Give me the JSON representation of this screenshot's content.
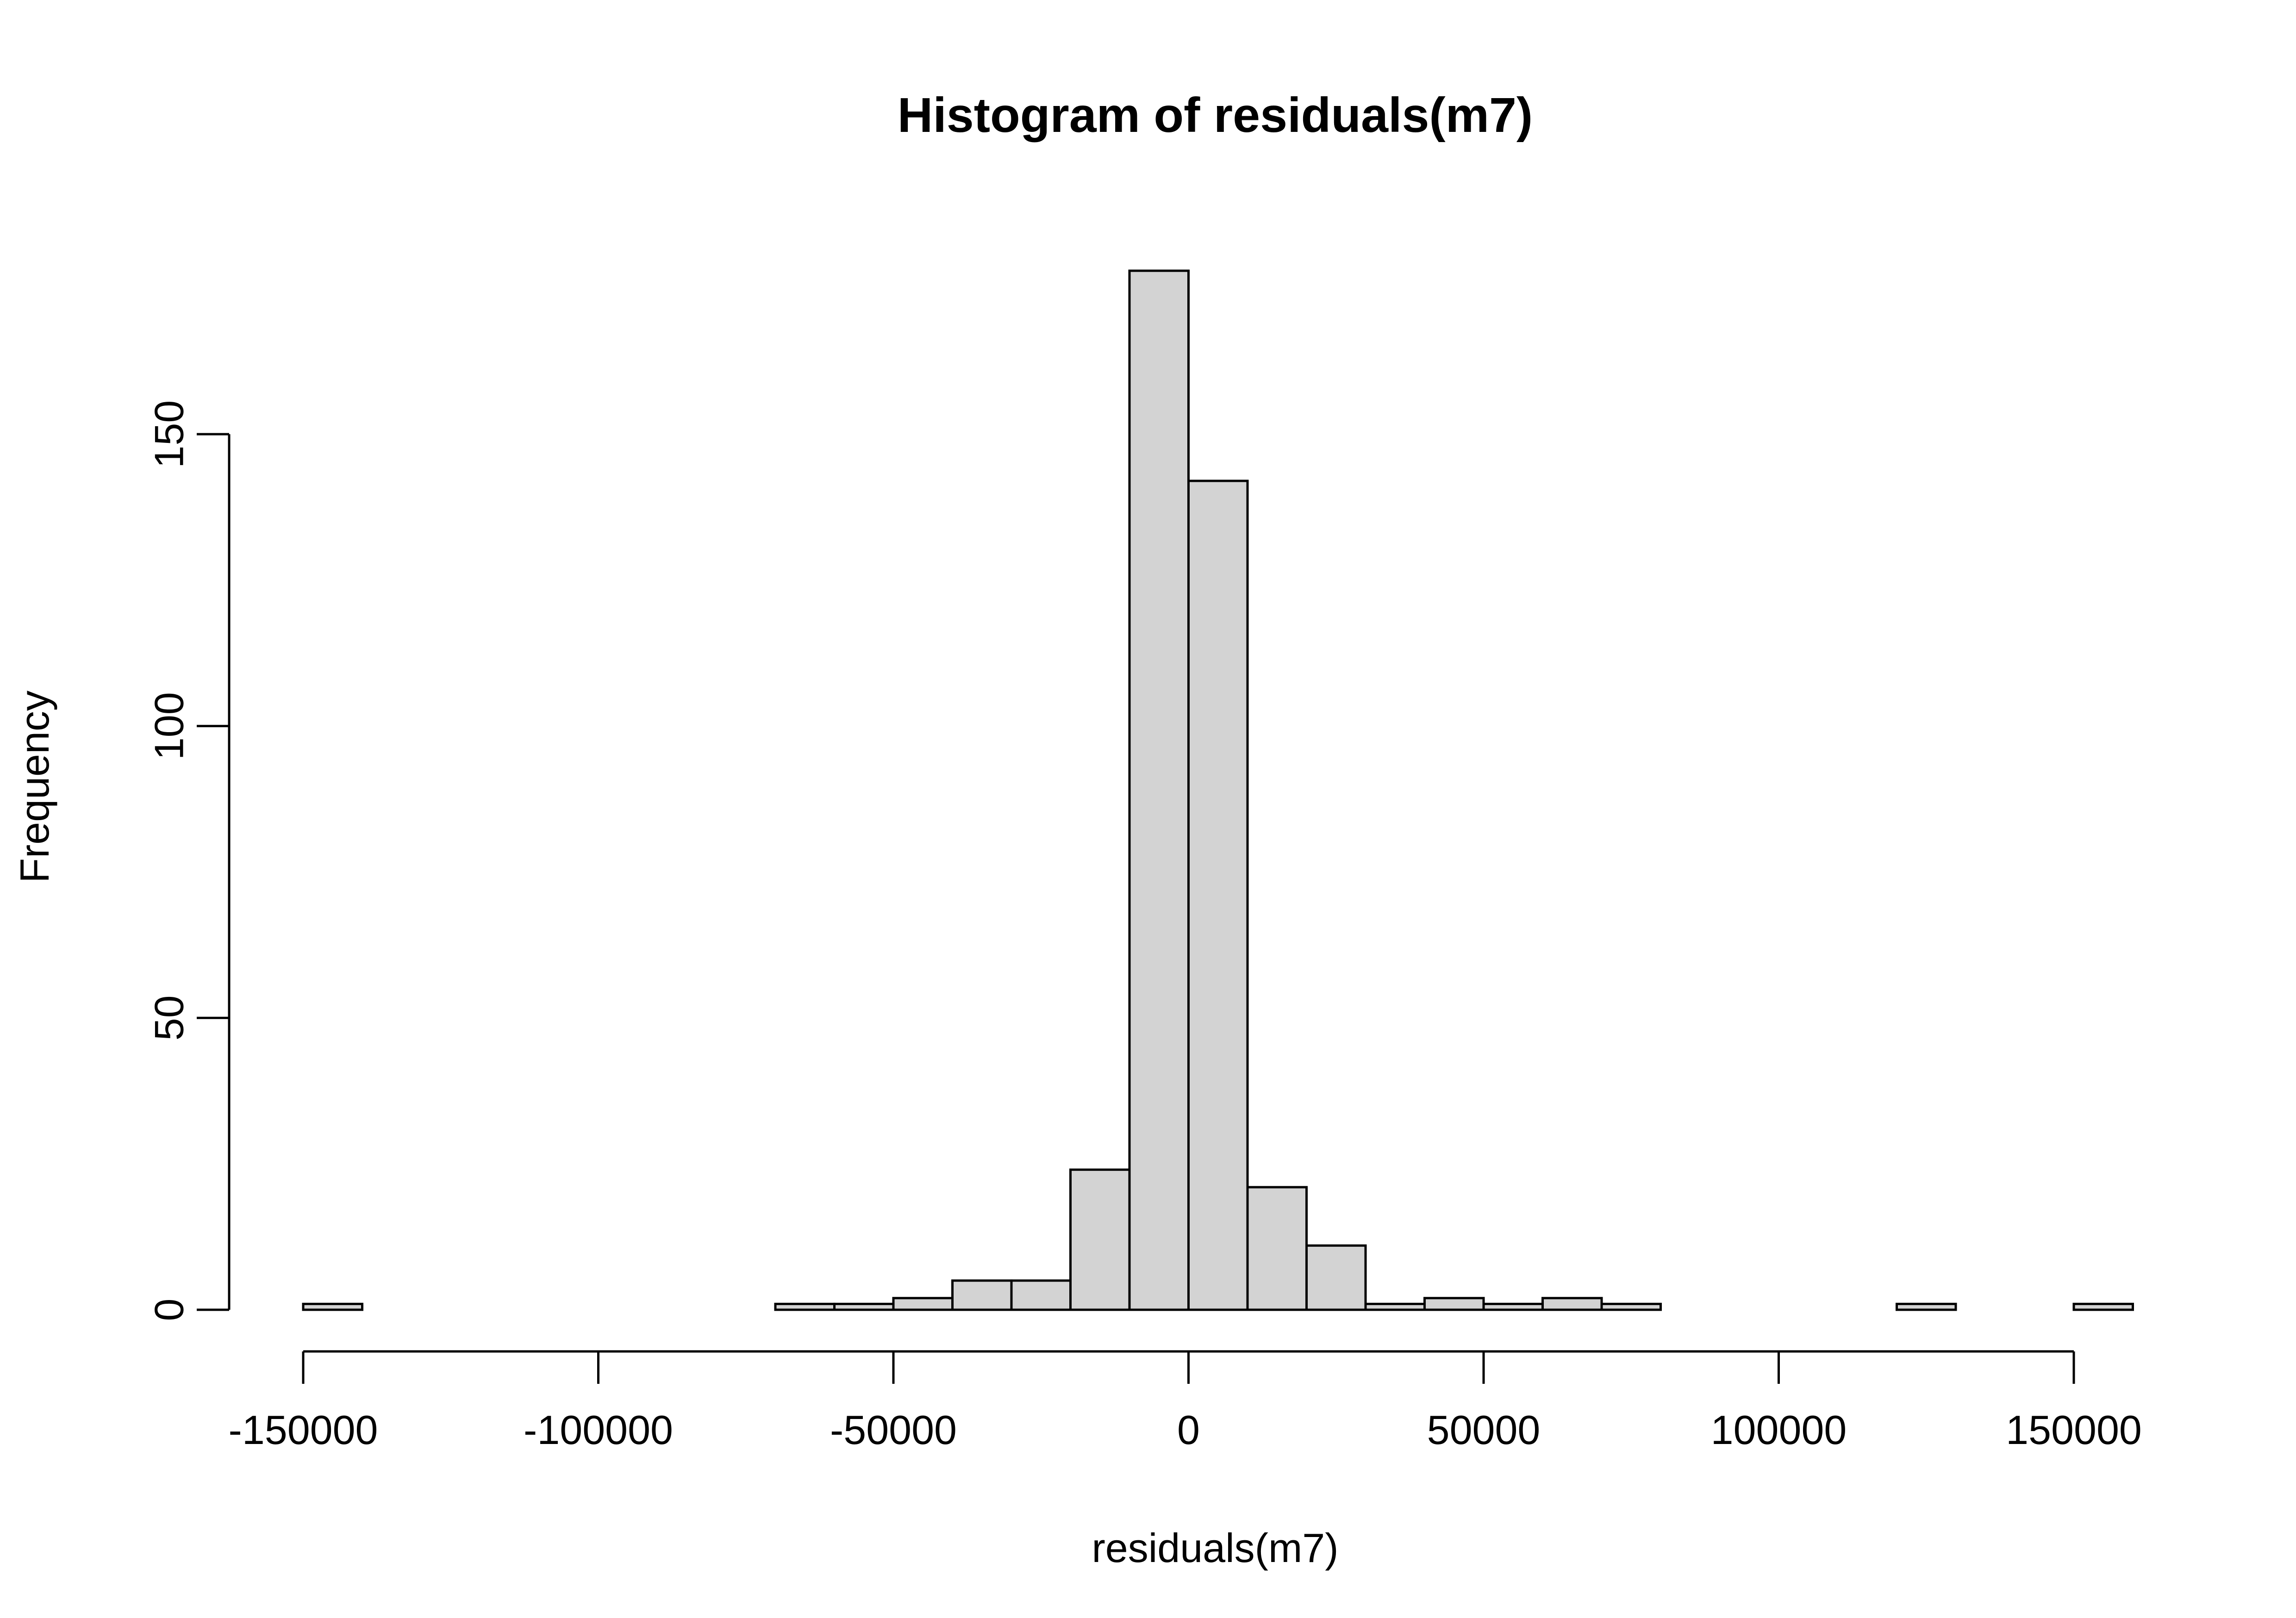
{
  "chart_data": {
    "type": "bar",
    "title": "Histogram of residuals(m7)",
    "xlabel": "residuals(m7)",
    "ylabel": "Frequency",
    "bin_width": 10000,
    "bin_starts": [
      -150000,
      -140000,
      -130000,
      -120000,
      -110000,
      -100000,
      -90000,
      -80000,
      -70000,
      -60000,
      -50000,
      -40000,
      -30000,
      -20000,
      -10000,
      0,
      10000,
      20000,
      30000,
      40000,
      50000,
      60000,
      70000,
      80000,
      90000,
      100000,
      110000,
      120000,
      130000,
      140000,
      150000
    ],
    "values": [
      1,
      0,
      0,
      0,
      0,
      0,
      0,
      0,
      1,
      1,
      2,
      5,
      5,
      24,
      178,
      142,
      21,
      11,
      1,
      2,
      1,
      2,
      1,
      0,
      0,
      0,
      0,
      1,
      0,
      0,
      1
    ],
    "xlim": [
      -150000,
      150000
    ],
    "ylim": [
      0,
      178
    ],
    "x_ticks": [
      -150000,
      -100000,
      -50000,
      0,
      50000,
      100000,
      150000
    ],
    "x_tick_labels": [
      "-150000",
      "-100000",
      "-50000",
      "0",
      "50000",
      "100000",
      "150000"
    ],
    "y_ticks": [
      0,
      50,
      100,
      150
    ],
    "y_tick_labels": [
      "0",
      "50",
      "100",
      "150"
    ],
    "grid": false,
    "legend": "none",
    "colors": {
      "bar_fill": "#d3d3d3",
      "bar_stroke": "#000000",
      "axis": "#000000",
      "background": "#ffffff"
    }
  }
}
